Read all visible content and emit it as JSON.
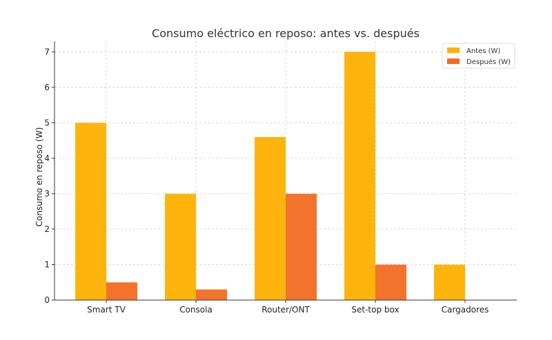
{
  "chart_data": {
    "type": "bar",
    "title": "Consumo eléctrico en reposo: antes vs. después",
    "xlabel": "",
    "ylabel": "Consumo en reposo (W)",
    "categories": [
      "Smart TV",
      "Consola",
      "Router/ONT",
      "Set-top box",
      "Cargadores"
    ],
    "series": [
      {
        "name": "Antes (W)",
        "values": [
          5.0,
          3.0,
          4.6,
          7.0,
          1.0
        ],
        "color": "#ffb000"
      },
      {
        "name": "Después (W)",
        "values": [
          0.5,
          0.3,
          3.0,
          1.0,
          0.0
        ],
        "color": "#f26b22"
      }
    ],
    "ylim": [
      0,
      7.3
    ],
    "yticks": [
      0,
      1,
      2,
      3,
      4,
      5,
      6,
      7
    ],
    "grid": true,
    "legend_position": "top-right"
  }
}
